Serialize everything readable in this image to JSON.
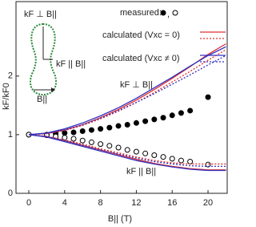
{
  "chart_data": {
    "type": "line",
    "x_label": "B|| (T)",
    "y_label": "kF/kF0",
    "xlim": [
      -1.43,
      22.14
    ],
    "ylim": [
      0,
      3.27
    ],
    "xticks": [
      0,
      4,
      8,
      12,
      16,
      20
    ],
    "yticks": [
      0,
      1,
      2
    ],
    "legend_entries": [
      "measured:",
      "calculated (Vxc = 0)",
      "calculated (Vxc ≠ 0)"
    ],
    "legend_separator": ",",
    "annotations": [
      "kF ⊥ B||",
      "kF || B||"
    ],
    "inset_labels": [
      "kF ⊥ B||",
      "kF || B||",
      "B||"
    ],
    "series": [
      {
        "legend": 0,
        "marker": "filled",
        "color": "#000000",
        "x": [
          0,
          2,
          3,
          4,
          5,
          6,
          7,
          8,
          9,
          10,
          11,
          12,
          13,
          14,
          15,
          16,
          17,
          18,
          20
        ],
        "values": [
          1,
          1.0,
          1.02,
          1.03,
          1.04,
          1.06,
          1.08,
          1.1,
          1.12,
          1.15,
          1.17,
          1.2,
          1.23,
          1.26,
          1.29,
          1.33,
          1.37,
          1.41,
          1.64
        ]
      },
      {
        "legend": 0,
        "marker": "open",
        "color": "#000000",
        "x": [
          0,
          2,
          3,
          4,
          5,
          6,
          7,
          8,
          9,
          10,
          11,
          12,
          13,
          14,
          15,
          16,
          17,
          18,
          20
        ],
        "values": [
          1,
          0.99,
          0.97,
          0.95,
          0.93,
          0.9,
          0.87,
          0.84,
          0.81,
          0.78,
          0.74,
          0.71,
          0.68,
          0.65,
          0.62,
          0.59,
          0.56,
          0.54,
          0.49
        ]
      },
      {
        "legend": 1,
        "dash": false,
        "color": "#e03030",
        "x": [
          0,
          2,
          4,
          6,
          8,
          10,
          12,
          14,
          16,
          18,
          20,
          22
        ],
        "values": [
          1,
          1.02,
          1.08,
          1.17,
          1.29,
          1.43,
          1.59,
          1.77,
          1.96,
          2.16,
          2.37,
          2.55
        ]
      },
      {
        "legend": 1,
        "dash": true,
        "color": "#e03030",
        "x": [
          0,
          2,
          4,
          6,
          8,
          10,
          12,
          14,
          16,
          18,
          20,
          22
        ],
        "values": [
          1,
          1.02,
          1.07,
          1.16,
          1.27,
          1.4,
          1.55,
          1.72,
          1.9,
          2.08,
          2.27,
          2.45
        ]
      },
      {
        "legend": 1,
        "dash": false,
        "color": "#e03030",
        "x": [
          0,
          2,
          4,
          6,
          8,
          10,
          12,
          14,
          16,
          18,
          20,
          22
        ],
        "values": [
          1,
          0.97,
          0.9,
          0.82,
          0.74,
          0.66,
          0.58,
          0.51,
          0.46,
          0.42,
          0.4,
          0.4
        ]
      },
      {
        "legend": 1,
        "dash": true,
        "color": "#e03030",
        "x": [
          0,
          2,
          4,
          6,
          8,
          10,
          12,
          14,
          16,
          18,
          20,
          22
        ],
        "values": [
          1,
          0.97,
          0.91,
          0.84,
          0.76,
          0.69,
          0.62,
          0.56,
          0.52,
          0.5,
          0.5,
          0.5
        ]
      },
      {
        "legend": 2,
        "dash": false,
        "color": "#3030c0",
        "x": [
          0,
          2,
          4,
          6,
          8,
          10,
          12,
          14,
          16,
          18,
          20,
          22
        ],
        "values": [
          1,
          1.03,
          1.1,
          1.2,
          1.32,
          1.46,
          1.62,
          1.8,
          1.98,
          2.17,
          2.35,
          2.5
        ]
      },
      {
        "legend": 2,
        "dash": true,
        "color": "#3030c0",
        "x": [
          0,
          2,
          4,
          6,
          8,
          10,
          12,
          14,
          16,
          18,
          20,
          22
        ],
        "values": [
          1,
          1.02,
          1.08,
          1.17,
          1.28,
          1.41,
          1.55,
          1.7,
          1.86,
          2.02,
          2.19,
          2.35
        ]
      },
      {
        "legend": 2,
        "dash": false,
        "color": "#3030c0",
        "x": [
          0,
          2,
          4,
          6,
          8,
          10,
          12,
          14,
          16,
          18,
          20,
          22
        ],
        "values": [
          1,
          0.96,
          0.88,
          0.8,
          0.72,
          0.64,
          0.56,
          0.5,
          0.45,
          0.41,
          0.39,
          0.39
        ]
      },
      {
        "legend": 2,
        "dash": true,
        "color": "#3030c0",
        "x": [
          0,
          2,
          4,
          6,
          8,
          10,
          12,
          14,
          16,
          18,
          20,
          22
        ],
        "values": [
          1,
          0.97,
          0.9,
          0.82,
          0.74,
          0.67,
          0.6,
          0.54,
          0.5,
          0.47,
          0.46,
          0.46
        ]
      }
    ]
  }
}
